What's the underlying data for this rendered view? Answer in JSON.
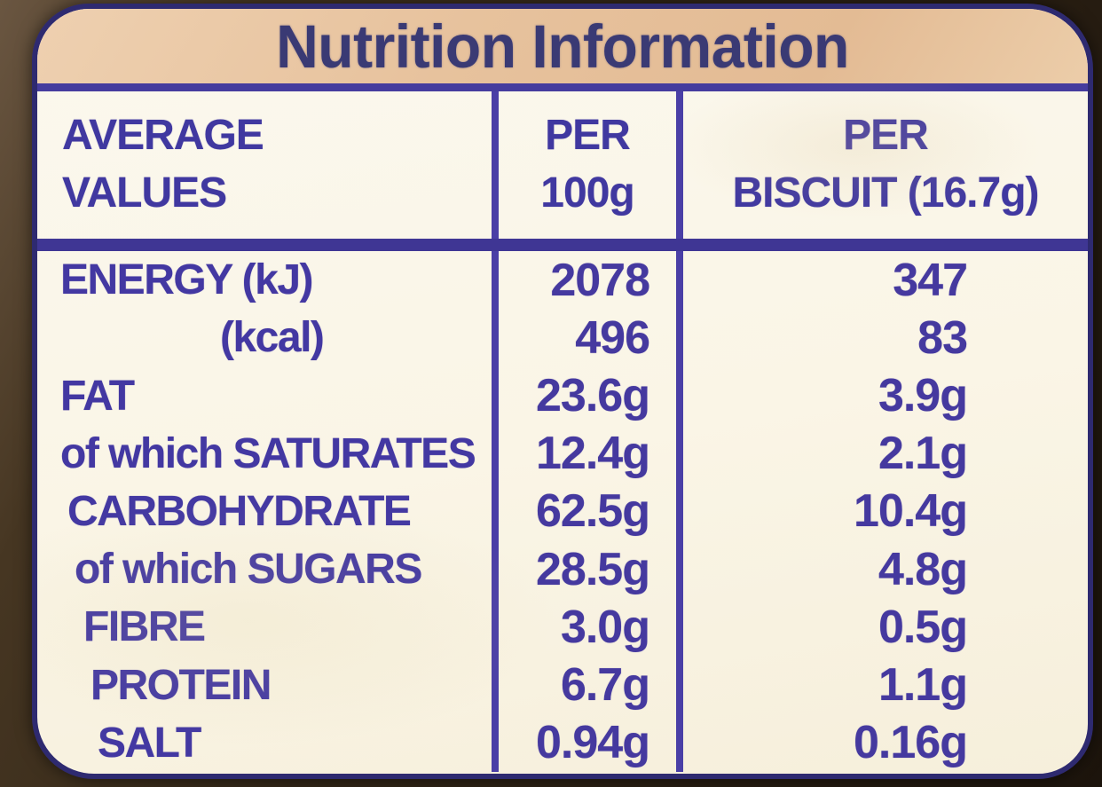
{
  "title": "Nutrition Information",
  "table": {
    "header": {
      "average_values": {
        "line1": "AVERAGE",
        "line2": "VALUES"
      },
      "per_100g": {
        "line1": "PER",
        "line2": "100g"
      },
      "per_biscuit": {
        "line1": "PER",
        "line2": "BISCUIT (16.7g)"
      }
    },
    "rows": [
      {
        "label": "ENERGY (kJ)",
        "per_100g": "2078",
        "per_biscuit": "347",
        "sub": false
      },
      {
        "label": "(kcal)",
        "per_100g": "496",
        "per_biscuit": "83",
        "sub": true
      },
      {
        "label": "FAT",
        "per_100g": "23.6g",
        "per_biscuit": "3.9g",
        "sub": false
      },
      {
        "label": "of which SATURATES",
        "per_100g": "12.4g",
        "per_biscuit": "2.1g",
        "sub": false
      },
      {
        "label": "CARBOHYDRATE",
        "per_100g": "62.5g",
        "per_biscuit": "10.4g",
        "sub": false
      },
      {
        "label": "of which SUGARS",
        "per_100g": "28.5g",
        "per_biscuit": "4.8g",
        "sub": false
      },
      {
        "label": "FIBRE",
        "per_100g": "3.0g",
        "per_biscuit": "0.5g",
        "sub": false
      },
      {
        "label": "PROTEIN",
        "per_100g": "6.7g",
        "per_biscuit": "1.1g",
        "sub": false
      },
      {
        "label": "SALT",
        "per_100g": "0.94g",
        "per_biscuit": "0.16g",
        "sub": false
      }
    ]
  },
  "colors": {
    "ink_blue": "#4338a2",
    "line_blue": "#4a3fa6",
    "title_navy": "#3a3a74",
    "band_tan": "#e7c29d",
    "paper_cream": "#faf5e6",
    "background_brown": "#322617"
  }
}
